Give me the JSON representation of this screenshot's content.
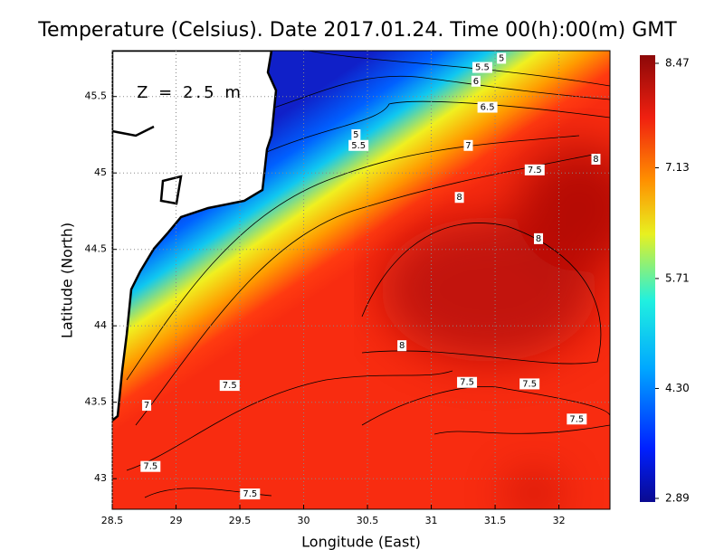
{
  "chart_data": {
    "type": "contour",
    "title": "Temperature (Celsius). Date 2017.01.24. Time 00(h):00(m) GMT",
    "annotation": "Z = 2.5 m",
    "x_label": "Longitude (East)",
    "y_label": "Latitude (North)",
    "xlim": [
      28.5,
      32.4
    ],
    "ylim": [
      42.8,
      45.8
    ],
    "xticks": [
      28.5,
      29,
      29.5,
      30,
      30.5,
      31,
      31.5,
      32
    ],
    "yticks": [
      43,
      43.5,
      44,
      44.5,
      45,
      45.5
    ],
    "grid": true,
    "colorbar": {
      "lim": [
        2.89,
        8.47
      ],
      "ticks": [
        2.89,
        {
          "value": 4.3,
          "label": "4.30"
        },
        5.71,
        7.13,
        8.47
      ]
    },
    "contour_labels": [
      {
        "level": 5,
        "lon": 31.55,
        "lat": 45.75
      },
      {
        "level": 5.5,
        "lon": 31.4,
        "lat": 45.69
      },
      {
        "level": 6,
        "lon": 31.35,
        "lat": 45.6
      },
      {
        "level": 6.5,
        "lon": 31.44,
        "lat": 45.43
      },
      {
        "level": 7,
        "lon": 31.29,
        "lat": 45.18
      },
      {
        "level": 5,
        "lon": 30.41,
        "lat": 45.25
      },
      {
        "level": 5.5,
        "lon": 30.43,
        "lat": 45.18
      },
      {
        "level": 7.5,
        "lon": 31.81,
        "lat": 45.02
      },
      {
        "level": 8,
        "lon": 32.29,
        "lat": 45.09
      },
      {
        "level": 8,
        "lon": 31.22,
        "lat": 44.84
      },
      {
        "level": 8,
        "lon": 31.84,
        "lat": 44.57
      },
      {
        "level": 8,
        "lon": 30.77,
        "lat": 43.87
      },
      {
        "level": 7.5,
        "lon": 29.42,
        "lat": 43.61
      },
      {
        "level": 7.5,
        "lon": 31.28,
        "lat": 43.63
      },
      {
        "level": 7.5,
        "lon": 31.77,
        "lat": 43.62
      },
      {
        "level": 7.5,
        "lon": 32.14,
        "lat": 43.39
      },
      {
        "level": 7,
        "lon": 28.77,
        "lat": 43.48
      },
      {
        "level": 7.5,
        "lon": 28.8,
        "lat": 43.08
      },
      {
        "level": 7.5,
        "lon": 29.58,
        "lat": 42.9
      }
    ]
  }
}
